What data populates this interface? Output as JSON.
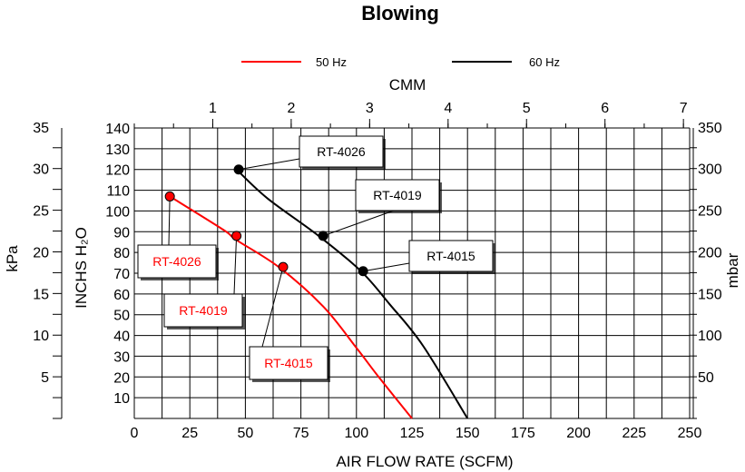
{
  "chart_data": {
    "type": "line",
    "title": "Blowing",
    "xlabel": "AIR FLOW RATE (SCFM)",
    "ylabel": "INCHS H₂O",
    "xlim": [
      0,
      250
    ],
    "ylim": [
      0,
      140
    ],
    "x_ticks": [
      "0",
      "25",
      "50",
      "75",
      "100",
      "125",
      "150",
      "175",
      "200",
      "225",
      "250"
    ],
    "y_ticks": [
      "10",
      "20",
      "30",
      "40",
      "50",
      "60",
      "70",
      "80",
      "90",
      "100",
      "110",
      "120",
      "130",
      "140"
    ],
    "secondary_axes": {
      "top": {
        "label": "CMM",
        "ticks": [
          "1",
          "2",
          "3",
          "4",
          "5",
          "6",
          "7"
        ]
      },
      "left": {
        "label": "kPa",
        "ticks": [
          "5",
          "10",
          "15",
          "20",
          "25",
          "30",
          "35"
        ]
      },
      "right": {
        "label": "mbar",
        "ticks": [
          "50",
          "100",
          "150",
          "200",
          "250",
          "300",
          "350"
        ]
      }
    },
    "legend_position": "top-center",
    "grid": true,
    "series": [
      {
        "name": "50 Hz",
        "color": "#ff0000",
        "x": [
          16,
          40,
          46,
          65,
          85,
          100,
          110,
          125
        ],
        "y": [
          107,
          91,
          86,
          73,
          54,
          34,
          20,
          0
        ]
      },
      {
        "name": "60 Hz",
        "color": "#000000",
        "x": [
          46,
          60,
          83,
          102,
          115,
          130,
          150
        ],
        "y": [
          120,
          106,
          88,
          71,
          55,
          35,
          0
        ]
      }
    ],
    "points": [
      {
        "label": "RT-4026",
        "series": "50 Hz",
        "x": 16,
        "y": 107
      },
      {
        "label": "RT-4019",
        "series": "50 Hz",
        "x": 46,
        "y": 88
      },
      {
        "label": "RT-4015",
        "series": "50 Hz",
        "x": 67,
        "y": 73
      },
      {
        "label": "RT-4026",
        "series": "60 Hz",
        "x": 47,
        "y": 120
      },
      {
        "label": "RT-4019",
        "series": "60 Hz",
        "x": 85,
        "y": 88
      },
      {
        "label": "RT-4015",
        "series": "60 Hz",
        "x": 103,
        "y": 71
      }
    ]
  }
}
